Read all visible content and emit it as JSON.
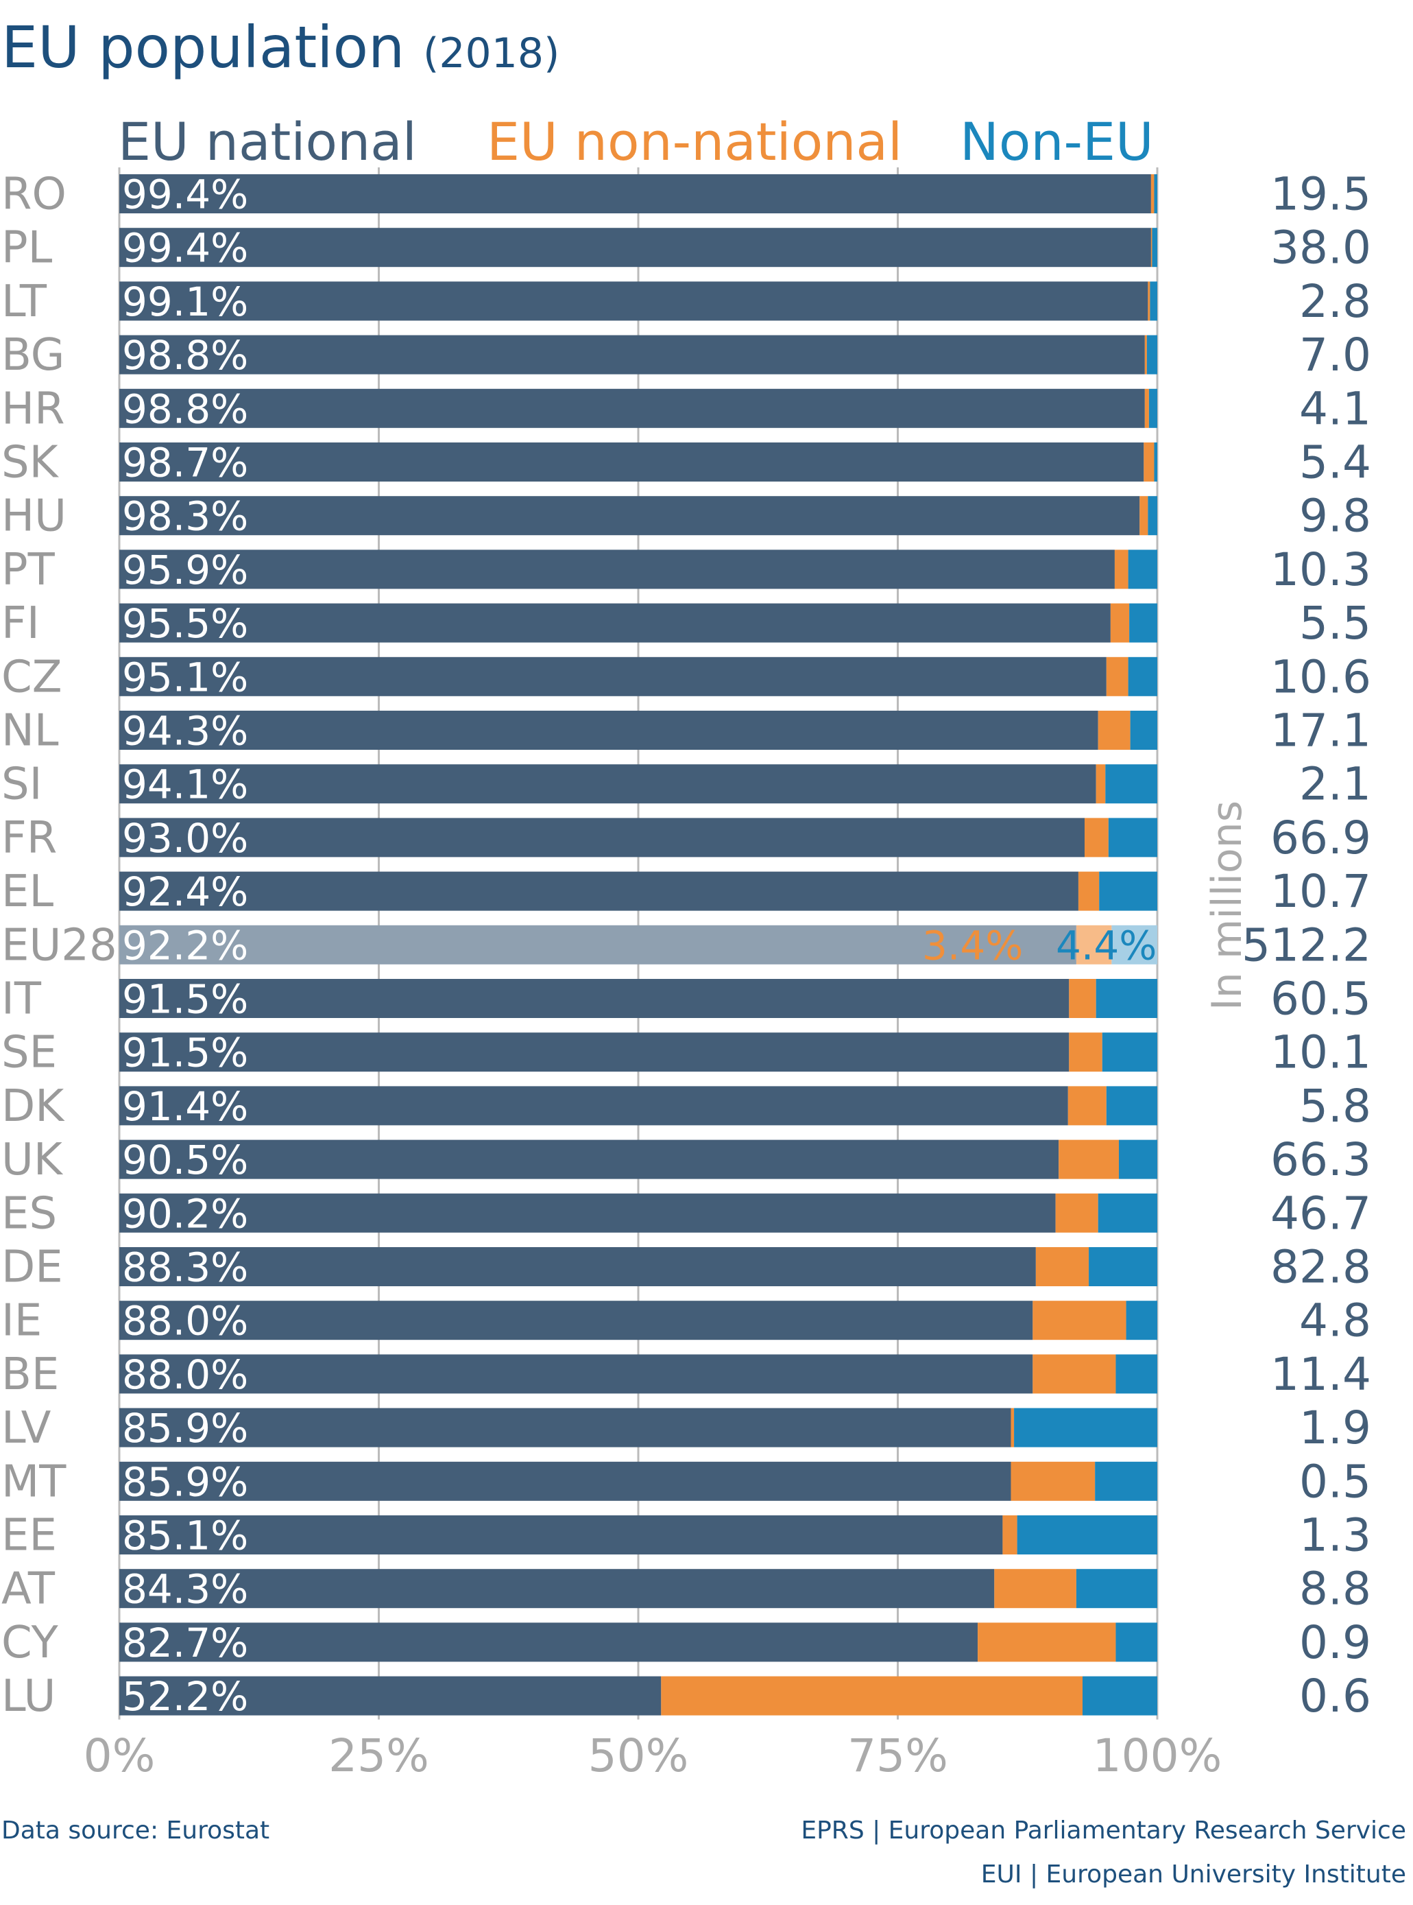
{
  "title": "EU population",
  "title_suffix": "(2018)",
  "colors": {
    "eu_national": "#445e78",
    "eu_non_national": "#ef8f3b",
    "non_eu": "#1b87bd",
    "eu28_national": "#8fa0b0",
    "eu28_non_national": "#f7bb88",
    "eu28_non_eu": "#a6cfe5",
    "title": "#1d4f7c"
  },
  "footer": {
    "source": "Data source: Eurostat",
    "credit1": "EPRS | European Parliamentary Research Service",
    "credit2": "EUI | European University Institute"
  },
  "chart_data": {
    "type": "bar",
    "orientation": "horizontal",
    "stacked": true,
    "title": "EU population (2018)",
    "legend": [
      "EU national",
      "EU non-national",
      "Non-EU"
    ],
    "legend_placement": "top",
    "xlim": [
      0,
      100
    ],
    "xticks": [
      "0%",
      "25%",
      "50%",
      "75%",
      "100%"
    ],
    "right_label": "In millions",
    "categories": [
      "RO",
      "PL",
      "LT",
      "BG",
      "HR",
      "SK",
      "HU",
      "PT",
      "FI",
      "CZ",
      "NL",
      "SI",
      "FR",
      "EL",
      "EU28",
      "IT",
      "SE",
      "DK",
      "UK",
      "ES",
      "DE",
      "IE",
      "BE",
      "LV",
      "MT",
      "EE",
      "AT",
      "CY",
      "LU"
    ],
    "series": [
      {
        "name": "EU national",
        "values": [
          99.4,
          99.4,
          99.1,
          98.8,
          98.8,
          98.7,
          98.3,
          95.9,
          95.5,
          95.1,
          94.3,
          94.1,
          93.0,
          92.4,
          92.2,
          91.5,
          91.5,
          91.4,
          90.5,
          90.2,
          88.3,
          88.0,
          88.0,
          85.9,
          85.9,
          85.1,
          84.3,
          82.7,
          52.2
        ]
      },
      {
        "name": "EU non-national",
        "values": [
          0.3,
          0.1,
          0.2,
          0.2,
          0.4,
          1.0,
          0.8,
          1.3,
          1.8,
          2.1,
          3.1,
          0.9,
          2.3,
          2.0,
          3.4,
          2.6,
          3.2,
          3.7,
          5.8,
          4.1,
          5.1,
          9.0,
          8.0,
          0.3,
          8.1,
          1.4,
          7.9,
          13.3,
          40.6
        ]
      },
      {
        "name": "Non-EU",
        "values": [
          0.3,
          0.5,
          0.7,
          1.0,
          0.8,
          0.3,
          0.9,
          2.8,
          2.7,
          2.8,
          2.6,
          5.0,
          4.7,
          5.6,
          4.4,
          5.9,
          5.3,
          4.9,
          3.7,
          5.7,
          6.6,
          3.0,
          4.0,
          13.8,
          6.0,
          13.5,
          7.8,
          4.0,
          7.2
        ]
      }
    ],
    "national_labels": [
      "99.4%",
      "99.4%",
      "99.1%",
      "98.8%",
      "98.8%",
      "98.7%",
      "98.3%",
      "95.9%",
      "95.5%",
      "95.1%",
      "94.3%",
      "94.1%",
      "93.0%",
      "92.4%",
      "92.2%",
      "91.5%",
      "91.5%",
      "91.4%",
      "90.5%",
      "90.2%",
      "88.3%",
      "88.0%",
      "88.0%",
      "85.9%",
      "85.9%",
      "85.1%",
      "84.3%",
      "82.7%",
      "52.2%"
    ],
    "eu28_labels": {
      "non_national": "3.4%",
      "non_eu": "4.4%"
    },
    "population_millions": [
      "19.5",
      "38.0",
      "2.8",
      "7.0",
      "4.1",
      "5.4",
      "9.8",
      "10.3",
      "5.5",
      "10.6",
      "17.1",
      "2.1",
      "66.9",
      "10.7",
      "512.2",
      "60.5",
      "10.1",
      "5.8",
      "66.3",
      "46.7",
      "82.8",
      "4.8",
      "11.4",
      "1.9",
      "0.5",
      "1.3",
      "8.8",
      "0.9",
      "0.6"
    ]
  }
}
